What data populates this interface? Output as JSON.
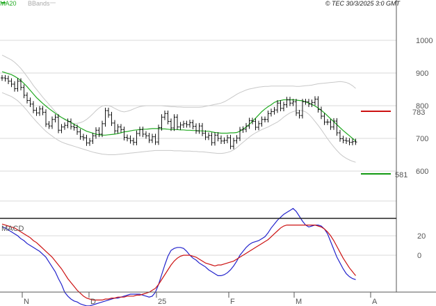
{
  "credit": "© TEC 30/3/2025 3:0 GMT",
  "colors": {
    "price": "#111111",
    "ma20": "#22aa22",
    "bbands": "#c8c8c8",
    "resistance": "#cc1111",
    "support": "#119911",
    "macd": "#2222cc",
    "signal": "#cc1111",
    "grid": "#d9d9d9",
    "frame": "#555555"
  },
  "chart_data": [
    {
      "type": "ohlc",
      "panel": "price",
      "legend": [
        {
          "label": "MA20",
          "color": "#22aa22"
        },
        {
          "label": "BBands",
          "color": "#c8c8c8"
        }
      ],
      "y_ticks": [
        "1000",
        "900",
        "800",
        "700",
        "600"
      ],
      "y_range": [
        497,
        1034
      ],
      "x_labels": [
        "N",
        "D",
        "25",
        "F",
        "M",
        "A"
      ],
      "grid": true,
      "close": [
        885,
        883,
        875,
        866,
        852,
        875,
        856,
        832,
        816,
        805,
        786,
        778,
        790,
        780,
        744,
        738,
        758,
        765,
        725,
        735,
        740,
        752,
        736,
        733,
        720,
        705,
        702,
        686,
        692,
        708,
        725,
        713,
        745,
        785,
        772,
        747,
        723,
        735,
        727,
        703,
        700,
        693,
        688,
        715,
        727,
        713,
        708,
        695,
        705,
        689,
        733,
        765,
        776,
        752,
        732,
        765,
        735,
        741,
        745,
        742,
        748,
        737,
        723,
        738,
        716,
        704,
        709,
        687,
        710,
        700,
        692,
        694,
        702,
        676,
        693,
        701,
        726,
        728,
        738,
        754,
        752,
        734,
        745,
        758,
        758,
        776,
        782,
        787,
        808,
        792,
        803,
        818,
        808,
        812,
        778,
        770,
        812,
        812,
        805,
        810,
        820,
        788,
        768,
        750,
        750,
        735,
        753,
        717,
        699,
        694,
        692,
        688,
        690,
        689
      ],
      "ma20": [
        904,
        901,
        898,
        895,
        890,
        884,
        877,
        868,
        858,
        847,
        836,
        825,
        816,
        807,
        799,
        791,
        784,
        777,
        770,
        764,
        759,
        754,
        749,
        743,
        738,
        732,
        727,
        722,
        719,
        716,
        713,
        711,
        710,
        710,
        711,
        712,
        713,
        715,
        717,
        720,
        721,
        723,
        725,
        726,
        727,
        728,
        728,
        729,
        730,
        730,
        730,
        729,
        729,
        728,
        727,
        727,
        727,
        726,
        726,
        725,
        725,
        724,
        724,
        723,
        723,
        722,
        722,
        720,
        718,
        717,
        716,
        716,
        716,
        717,
        717,
        718,
        722,
        728,
        735,
        743,
        752,
        762,
        772,
        782,
        790,
        797,
        803,
        810,
        814,
        816,
        818,
        818,
        818,
        818,
        817,
        816,
        815,
        812,
        808,
        804,
        799,
        793,
        786,
        778,
        769,
        760,
        751,
        742,
        733,
        724,
        716,
        708,
        700,
        692
      ],
      "bb_upper": [
        955,
        950,
        945,
        940,
        933,
        924,
        914,
        902,
        889,
        876,
        862,
        850,
        838,
        826,
        815,
        804,
        793,
        782,
        772,
        764,
        757,
        752,
        748,
        746,
        746,
        748,
        752,
        758,
        766,
        775,
        785,
        793,
        799,
        801,
        800,
        797,
        792,
        787,
        783,
        781,
        783,
        786,
        790,
        794,
        797,
        799,
        800,
        800,
        800,
        800,
        800,
        800,
        799,
        798,
        797,
        797,
        796,
        796,
        795,
        795,
        795,
        795,
        795,
        795,
        796,
        798,
        800,
        802,
        804,
        806,
        808,
        812,
        817,
        823,
        829,
        835,
        840,
        844,
        848,
        851,
        853,
        855,
        857,
        858,
        859,
        859,
        860,
        860,
        860,
        860,
        860,
        860,
        860,
        860,
        859,
        859,
        860,
        861,
        862,
        863,
        865,
        867,
        868,
        869,
        870,
        871,
        872,
        873,
        874,
        873,
        871,
        867,
        861,
        853
      ],
      "bb_lower": [
        840,
        836,
        832,
        828,
        822,
        815,
        806,
        796,
        785,
        773,
        762,
        751,
        741,
        731,
        722,
        714,
        707,
        700,
        694,
        689,
        685,
        682,
        679,
        676,
        673,
        670,
        667,
        664,
        661,
        658,
        656,
        654,
        652,
        651,
        650,
        650,
        650,
        651,
        652,
        653,
        654,
        655,
        656,
        657,
        658,
        659,
        660,
        661,
        662,
        663,
        663,
        663,
        663,
        663,
        663,
        662,
        662,
        662,
        661,
        661,
        661,
        660,
        660,
        659,
        659,
        658,
        657,
        656,
        655,
        654,
        654,
        655,
        657,
        660,
        665,
        672,
        680,
        688,
        696,
        704,
        711,
        717,
        722,
        727,
        731,
        735,
        740,
        745,
        750,
        757,
        765,
        772,
        778,
        782,
        785,
        786,
        785,
        781,
        774,
        764,
        752,
        740,
        727,
        713,
        699,
        686,
        674,
        663,
        653,
        645,
        639,
        634,
        630,
        627
      ],
      "resistance": {
        "value": 783,
        "label": "783"
      },
      "support": {
        "value": 581,
        "label": "581"
      }
    },
    {
      "type": "line",
      "panel": "macd",
      "title": "MACD",
      "y_ticks": [
        "20",
        "0"
      ],
      "y_range": [
        -73,
        57
      ],
      "series": [
        {
          "key": "macd",
          "values": [
            29,
            28,
            26,
            24,
            22,
            20,
            17,
            15,
            12,
            10,
            8,
            6,
            4,
            1,
            -2,
            -7,
            -12,
            -17,
            -24,
            -30,
            -38,
            -42,
            -45,
            -47,
            -48,
            -50,
            -51,
            -52,
            -52,
            -51,
            -50,
            -49,
            -48,
            -47,
            -46,
            -45,
            -44,
            -44,
            -43,
            -42,
            -41,
            -40,
            -40,
            -40,
            -40,
            -41,
            -42,
            -43,
            -42,
            -38,
            -30,
            -20,
            -10,
            -1,
            5,
            7,
            8,
            8,
            7,
            4,
            0,
            -3,
            -5,
            -8,
            -10,
            -12,
            -15,
            -17,
            -19,
            -21,
            -21,
            -20,
            -18,
            -15,
            -11,
            -6,
            0,
            4,
            8,
            11,
            13,
            14,
            15,
            17,
            19,
            23,
            28,
            32,
            36,
            39,
            42,
            44,
            46,
            48,
            45,
            40,
            35,
            31,
            29,
            30,
            31,
            31,
            30,
            27,
            22,
            14,
            6,
            -2,
            -8,
            -14,
            -19,
            -22,
            -24,
            -25
          ]
        },
        {
          "key": "signal",
          "values": [
            32,
            31,
            30,
            29,
            28,
            26,
            24,
            22,
            20,
            18,
            15,
            13,
            10,
            7,
            4,
            1,
            -2,
            -6,
            -10,
            -14,
            -19,
            -24,
            -28,
            -32,
            -36,
            -39,
            -42,
            -44,
            -45,
            -46,
            -46,
            -46,
            -46,
            -45,
            -45,
            -44,
            -44,
            -43,
            -43,
            -43,
            -42,
            -42,
            -42,
            -41,
            -41,
            -40,
            -39,
            -38,
            -36,
            -34,
            -30,
            -25,
            -20,
            -15,
            -10,
            -6,
            -3,
            -1,
            0,
            0,
            0,
            -1,
            -2,
            -4,
            -6,
            -8,
            -9,
            -10,
            -11,
            -10,
            -10,
            -9,
            -8,
            -7,
            -6,
            -4,
            -2,
            0,
            2,
            4,
            6,
            8,
            10,
            12,
            14,
            16,
            19,
            22,
            25,
            28,
            30,
            31,
            31,
            31,
            31,
            31,
            31,
            31,
            31,
            31,
            31,
            30,
            29,
            27,
            24,
            20,
            15,
            9,
            3,
            -3,
            -8,
            -13,
            -17,
            -21
          ]
        }
      ]
    }
  ]
}
